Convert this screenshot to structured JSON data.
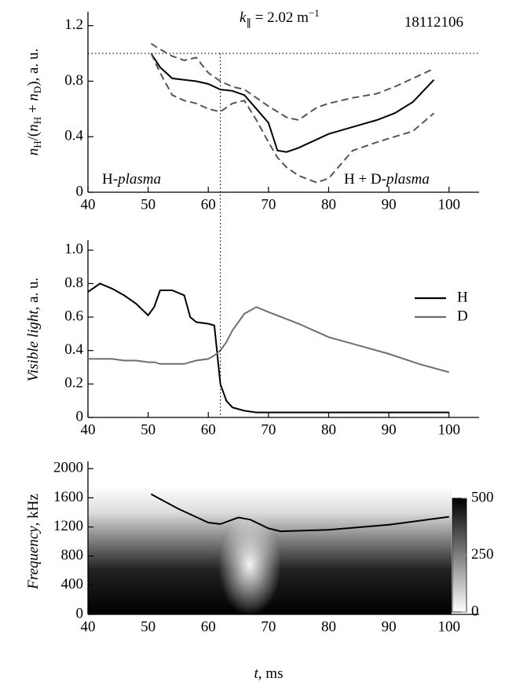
{
  "chart_data": [
    {
      "type": "line",
      "ylabel": [
        "n",
        "H",
        "/(",
        "n",
        "H",
        " + ",
        "n",
        "D",
        "), a. u."
      ],
      "annotations": {
        "k": [
          "k",
          "∥",
          " = 2.02 m",
          "−1"
        ],
        "shot": "18112106",
        "left": [
          "H-",
          "plasma"
        ],
        "right": [
          "H + D-",
          "plasma"
        ]
      },
      "x": [
        50.5,
        52,
        54,
        56,
        58,
        60,
        62,
        64,
        66,
        68,
        70,
        71.5,
        73,
        75,
        78,
        80,
        84,
        88,
        91,
        94,
        97.5
      ],
      "series": [
        {
          "color": "#000000",
          "line_style": "solid",
          "values": [
            1.0,
            0.9,
            0.82,
            0.81,
            0.8,
            0.78,
            0.74,
            0.73,
            0.7,
            0.6,
            0.5,
            0.3,
            0.29,
            0.32,
            0.38,
            0.42,
            0.47,
            0.52,
            0.57,
            0.65,
            0.81
          ]
        },
        {
          "color": "#555555",
          "line_style": "dashed",
          "values": [
            1.07,
            1.03,
            0.98,
            0.95,
            0.97,
            0.86,
            0.8,
            0.76,
            0.74,
            0.68,
            0.62,
            0.58,
            0.54,
            0.52,
            0.61,
            0.64,
            0.68,
            0.71,
            0.76,
            0.82,
            0.89
          ]
        },
        {
          "color": "#555555",
          "line_style": "dashed",
          "values": [
            1.0,
            0.86,
            0.7,
            0.66,
            0.64,
            0.6,
            0.58,
            0.64,
            0.66,
            0.52,
            0.36,
            0.25,
            0.18,
            0.12,
            0.07,
            0.1,
            0.3,
            0.36,
            0.4,
            0.44,
            0.57
          ]
        }
      ],
      "hline": 1.0,
      "vline": 62,
      "xlim": [
        40,
        105
      ],
      "xticks": [
        40,
        50,
        60,
        70,
        80,
        90,
        100
      ],
      "ylim": [
        0,
        1.3
      ],
      "yticks": [
        0,
        0.4,
        0.8,
        1.2
      ]
    },
    {
      "type": "line",
      "ylabel": [
        "Visible light",
        ", a. u."
      ],
      "x": [
        40,
        42,
        44,
        46,
        48,
        50,
        51,
        52,
        54,
        56,
        57,
        58,
        60,
        61,
        62,
        63,
        64,
        66,
        68,
        70,
        75,
        80,
        85,
        90,
        95,
        100
      ],
      "series": [
        {
          "name": "H",
          "color": "#000000",
          "values": [
            0.75,
            0.8,
            0.77,
            0.73,
            0.68,
            0.61,
            0.66,
            0.76,
            0.76,
            0.73,
            0.6,
            0.57,
            0.56,
            0.55,
            0.2,
            0.1,
            0.06,
            0.04,
            0.03,
            0.03,
            0.03,
            0.03,
            0.03,
            0.03,
            0.03,
            0.03
          ]
        },
        {
          "name": "D",
          "color": "#6e6e6e",
          "values": [
            0.35,
            0.35,
            0.35,
            0.34,
            0.34,
            0.33,
            0.33,
            0.32,
            0.32,
            0.32,
            0.33,
            0.34,
            0.35,
            0.37,
            0.4,
            0.45,
            0.52,
            0.62,
            0.66,
            0.63,
            0.56,
            0.48,
            0.43,
            0.38,
            0.32,
            0.27
          ]
        }
      ],
      "legend": "right",
      "xlim": [
        40,
        105
      ],
      "xticks": [
        40,
        50,
        60,
        70,
        80,
        90,
        100
      ],
      "ylim": [
        0,
        1.06
      ],
      "yticks": [
        0,
        0.2,
        0.4,
        0.6,
        0.8,
        {
          "value": 1,
          "label": "1.0"
        }
      ]
    },
    {
      "type": "line",
      "ylabel": [
        "Frequency",
        ", kHz"
      ],
      "xlabel": [
        "t",
        ", ms"
      ],
      "x": [
        50.5,
        55,
        60,
        62,
        65,
        67,
        70,
        72,
        80,
        90,
        100
      ],
      "series": [
        {
          "color": "#000000",
          "values": [
            1650,
            1450,
            1260,
            1240,
            1330,
            1300,
            1180,
            1140,
            1160,
            1230,
            1340
          ]
        }
      ],
      "colorbar": {
        "lim": [
          0,
          500
        ],
        "ticks": [
          0,
          250,
          500
        ]
      },
      "xlim": [
        40,
        105
      ],
      "xticks": [
        40,
        50,
        60,
        70,
        80,
        90,
        100
      ],
      "ylim": [
        0,
        2100
      ],
      "yticks": [
        0,
        400,
        800,
        1200,
        1600,
        2000
      ]
    }
  ]
}
